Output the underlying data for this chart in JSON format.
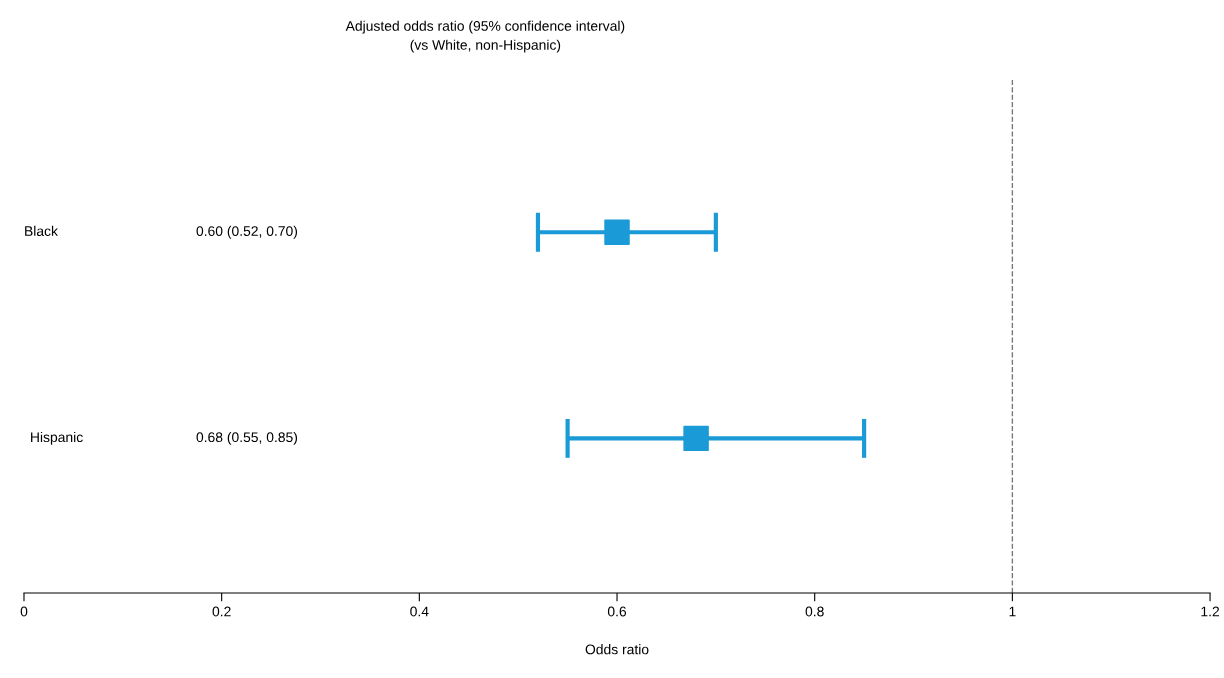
{
  "chart_data": {
    "type": "scatter",
    "orientation": "horizontal",
    "title": "Adjusted odds ratio (95% confidence interval)\n(vs White, non-Hispanic)",
    "xlabel": "Odds ratio",
    "categories": [
      "Black",
      "Hispanic"
    ],
    "series": [
      {
        "color": "#1a9ad6",
        "values": [
          0.6,
          0.68
        ],
        "errors": [
          [
            0.52,
            0.7
          ],
          [
            0.55,
            0.85
          ]
        ]
      }
    ],
    "annotations": [
      "0.60 (0.52, 0.70)",
      "0.68 (0.55, 0.85)"
    ],
    "xlim": [
      0,
      1.2
    ],
    "xticks": [
      0,
      0.2,
      0.4,
      0.6,
      0.8,
      1,
      1.2
    ],
    "ref_lines": [
      {
        "axis": "x",
        "value": 1,
        "line_style": "dashed",
        "color": "#777777"
      }
    ],
    "marker": "square",
    "grid": false,
    "legend": false,
    "tick_labels": "x"
  }
}
